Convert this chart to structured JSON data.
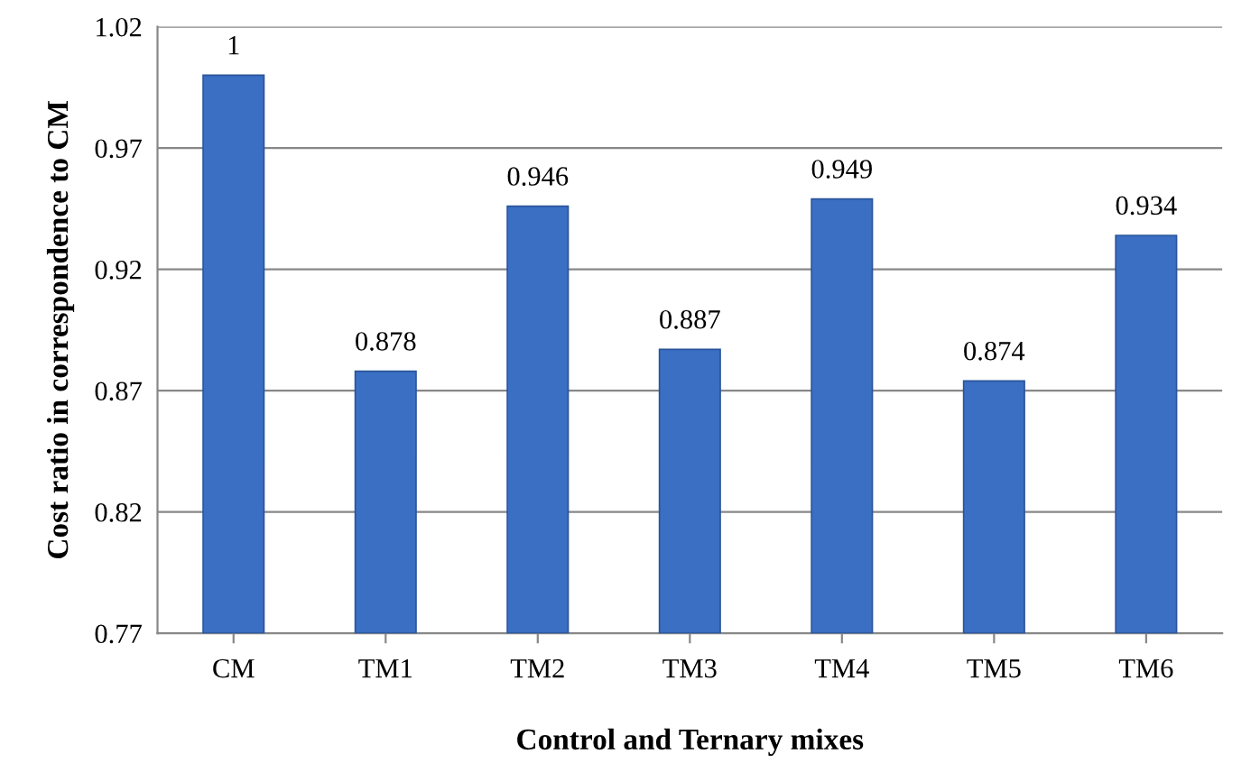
{
  "chart_data": {
    "type": "bar",
    "xlabel": "Control and Ternary mixes",
    "ylabel": "Cost ratio in correspondence to CM",
    "categories": [
      "CM",
      "TM1",
      "TM2",
      "TM3",
      "TM4",
      "TM5",
      "TM6"
    ],
    "values": [
      1,
      0.878,
      0.946,
      0.887,
      0.949,
      0.874,
      0.934
    ],
    "color": "#3b6fc4",
    "ylim": [
      0.77,
      1.02
    ],
    "yticks": [
      0.77,
      0.82,
      0.87,
      0.92,
      0.97,
      1.02
    ],
    "grid": "y",
    "data_labels": true
  }
}
